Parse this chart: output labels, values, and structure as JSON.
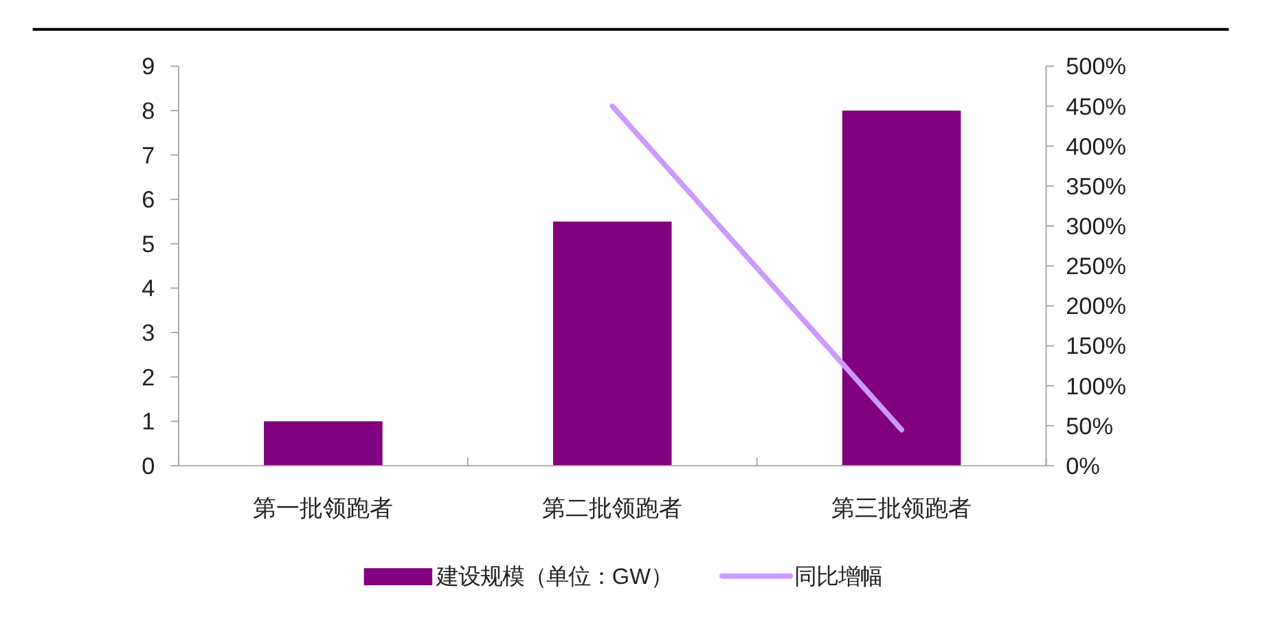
{
  "chart_data": {
    "type": "bar",
    "categories": [
      "第一批领跑者",
      "第二批领跑者",
      "第三批领跑者"
    ],
    "series": [
      {
        "name": "建设规模（单位：GW）",
        "color": "#800080",
        "values": [
          1,
          5.5,
          8
        ]
      },
      {
        "name": "同比增幅",
        "type": "line",
        "axis": "y2",
        "color": "#cc99ff",
        "values": [
          null,
          450,
          45
        ]
      }
    ],
    "ylim": [
      0,
      9
    ],
    "yticks": [
      0,
      1,
      2,
      3,
      4,
      5,
      6,
      7,
      8,
      9
    ],
    "y2lim": [
      0,
      500
    ],
    "y2ticks": [
      {
        "value": 0,
        "label": "0%"
      },
      {
        "value": 50,
        "label": "50%"
      },
      {
        "value": 100,
        "label": "100%"
      },
      {
        "value": 150,
        "label": "150%"
      },
      {
        "value": 200,
        "label": "200%"
      },
      {
        "value": 250,
        "label": "250%"
      },
      {
        "value": 300,
        "label": "300%"
      },
      {
        "value": 350,
        "label": "350%"
      },
      {
        "value": 400,
        "label": "400%"
      },
      {
        "value": 450,
        "label": "450%"
      },
      {
        "value": 500,
        "label": "500%"
      }
    ],
    "grid": false,
    "legend": "bottom"
  }
}
